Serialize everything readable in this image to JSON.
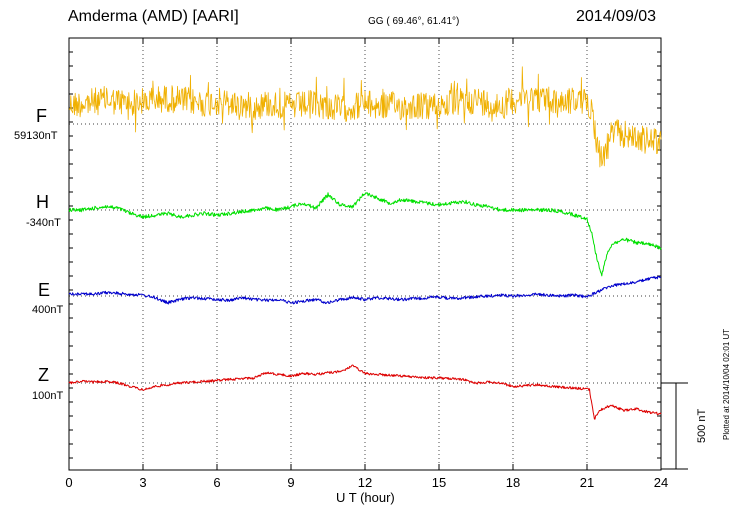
{
  "header": {
    "station": "Amderma (AMD)  [AARI]",
    "coords": "GG ( 69.46°,  61.41°)",
    "date": "2014/09/03"
  },
  "footer": {
    "plotted": "Plotted at 2014/10/04 02:01  UT",
    "scale_label": "500 nT"
  },
  "chart_data": {
    "type": "line",
    "title": "Amderma (AMD)  [AARI]",
    "xlabel": "U T (hour)",
    "ylabel": "",
    "xlim": [
      0,
      24
    ],
    "x_ticks": [
      "0",
      "3",
      "6",
      "9",
      "12",
      "15",
      "18",
      "21",
      "24"
    ],
    "scale_nT": 500,
    "series": [
      {
        "name": "F",
        "baseline": "59130nT",
        "color": "#f0b000",
        "x": [
          0,
          0.5,
          1,
          1.5,
          2,
          2.5,
          3,
          3.5,
          4,
          4.5,
          5,
          5.5,
          6,
          6.5,
          7,
          7.5,
          8,
          8.5,
          9,
          9.5,
          10,
          10.5,
          11,
          11.5,
          12,
          12.5,
          13,
          13.5,
          14,
          14.5,
          15,
          15.5,
          16,
          16.5,
          17,
          17.5,
          18,
          18.5,
          19,
          19.5,
          20,
          20.5,
          21,
          21.2,
          21.4,
          21.6,
          21.8,
          22,
          22.5,
          23,
          23.5,
          24
        ],
        "y": [
          110,
          120,
          130,
          140,
          130,
          120,
          130,
          140,
          150,
          140,
          130,
          120,
          130,
          120,
          110,
          100,
          120,
          110,
          100,
          110,
          120,
          100,
          90,
          100,
          120,
          100,
          110,
          100,
          110,
          100,
          110,
          120,
          130,
          140,
          120,
          110,
          140,
          160,
          150,
          140,
          130,
          140,
          120,
          100,
          -120,
          -200,
          -140,
          -50,
          -60,
          -80,
          -100,
          -90
        ]
      },
      {
        "name": "H",
        "baseline": "-340nT",
        "color": "#00e000",
        "x": [
          0,
          0.5,
          1,
          1.5,
          2,
          2.5,
          3,
          3.5,
          4,
          4.5,
          5,
          5.5,
          6,
          6.5,
          7,
          7.5,
          8,
          8.5,
          9,
          9.5,
          10,
          10.5,
          11,
          11.5,
          12,
          12.5,
          13,
          13.5,
          14,
          14.5,
          15,
          15.5,
          16,
          16.5,
          17,
          17.5,
          18,
          18.5,
          19,
          19.5,
          20,
          20.5,
          21,
          21.2,
          21.4,
          21.6,
          21.8,
          22,
          22.5,
          23,
          23.5,
          24
        ],
        "y": [
          0,
          0,
          10,
          20,
          10,
          -20,
          -40,
          -30,
          -20,
          -40,
          -30,
          -20,
          -30,
          -20,
          -10,
          0,
          10,
          0,
          20,
          40,
          10,
          90,
          30,
          20,
          100,
          70,
          40,
          60,
          50,
          40,
          30,
          40,
          50,
          30,
          20,
          0,
          0,
          0,
          0,
          0,
          -10,
          -30,
          -50,
          -140,
          -280,
          -380,
          -260,
          -200,
          -170,
          -190,
          -200,
          -220
        ]
      },
      {
        "name": "E",
        "baseline": "400nT",
        "color": "#0000cc",
        "x": [
          0,
          0.5,
          1,
          1.5,
          2,
          2.5,
          3,
          3.5,
          4,
          4.5,
          5,
          5.5,
          6,
          6.5,
          7,
          7.5,
          8,
          8.5,
          9,
          9.5,
          10,
          10.5,
          11,
          11.5,
          12,
          12.5,
          13,
          13.5,
          14,
          14.5,
          15,
          15.5,
          16,
          16.5,
          17,
          17.5,
          18,
          18.5,
          19,
          19.5,
          20,
          20.5,
          21,
          21.5,
          22,
          22.5,
          23,
          23.5,
          24
        ],
        "y": [
          10,
          15,
          10,
          20,
          15,
          10,
          5,
          -10,
          -40,
          -20,
          -10,
          -15,
          -20,
          -25,
          -10,
          -20,
          -25,
          -20,
          -40,
          -30,
          -20,
          -40,
          -20,
          -10,
          -20,
          -10,
          -15,
          -20,
          -15,
          -10,
          -5,
          -15,
          -10,
          -5,
          0,
          5,
          0,
          5,
          10,
          5,
          0,
          5,
          -5,
          30,
          60,
          70,
          80,
          100,
          110
        ]
      },
      {
        "name": "Z",
        "baseline": "100nT",
        "color": "#dd0000",
        "x": [
          0,
          0.5,
          1,
          1.5,
          2,
          2.5,
          3,
          3.5,
          4,
          4.5,
          5,
          5.5,
          6,
          6.5,
          7,
          7.5,
          8,
          8.5,
          9,
          9.5,
          10,
          10.5,
          11,
          11.5,
          12,
          12.5,
          13,
          13.5,
          14,
          14.5,
          15,
          15.5,
          16,
          16.5,
          17,
          17.5,
          18,
          18.5,
          19,
          19.5,
          20,
          20.5,
          21,
          21.1,
          21.3,
          21.5,
          21.8,
          22,
          22.5,
          23,
          23.5,
          24
        ],
        "y": [
          0,
          10,
          5,
          10,
          0,
          -20,
          -40,
          -20,
          -10,
          0,
          5,
          10,
          15,
          20,
          25,
          30,
          60,
          50,
          40,
          55,
          50,
          60,
          65,
          100,
          55,
          50,
          45,
          40,
          35,
          30,
          30,
          25,
          20,
          0,
          5,
          0,
          -20,
          -15,
          -10,
          -20,
          -25,
          -30,
          -35,
          -40,
          -210,
          -160,
          -140,
          -130,
          -160,
          -150,
          -170,
          -180
        ]
      }
    ]
  }
}
